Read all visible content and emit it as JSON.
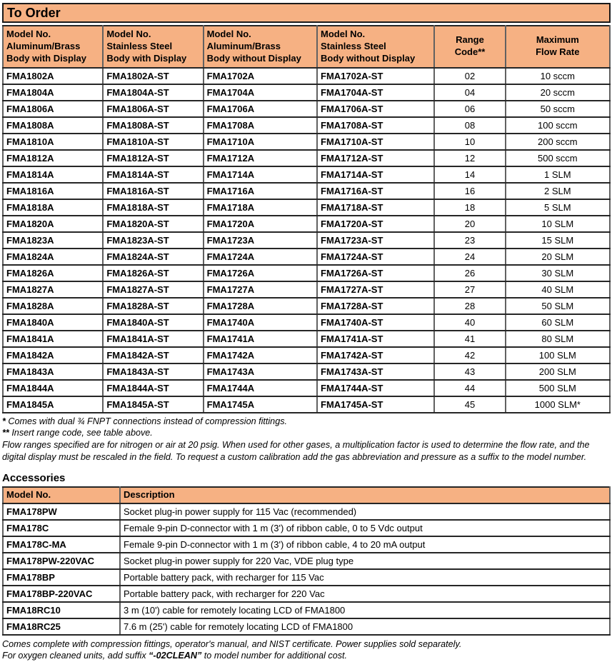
{
  "page": {
    "title": "To Order",
    "accessories_title": "Accessories"
  },
  "colors": {
    "header_orange": "#F6B183",
    "border_dark": "#1a1a1a",
    "border_gray": "#616161"
  },
  "order_table": {
    "headers": [
      "Model No.\nAluminum/Brass\nBody with Display",
      "Model No.\nStainless Steel\nBody with Display",
      "Model No.\nAluminum/Brass\nBody without Display",
      "Model No.\nStainless Steel\nBody without Display",
      "Range\nCode**",
      "Maximum\nFlow Rate"
    ],
    "rows": [
      [
        "FMA1802A",
        "FMA1802A-ST",
        "FMA1702A",
        "FMA1702A-ST",
        "02",
        "10 sccm"
      ],
      [
        "FMA1804A",
        "FMA1804A-ST",
        "FMA1704A",
        "FMA1704A-ST",
        "04",
        "20 sccm"
      ],
      [
        "FMA1806A",
        "FMA1806A-ST",
        "FMA1706A",
        "FMA1706A-ST",
        "06",
        "50 sccm"
      ],
      [
        "FMA1808A",
        "FMA1808A-ST",
        "FMA1708A",
        "FMA1708A-ST",
        "08",
        "100 sccm"
      ],
      [
        "FMA1810A",
        "FMA1810A-ST",
        "FMA1710A",
        "FMA1710A-ST",
        "10",
        "200 sccm"
      ],
      [
        "FMA1812A",
        "FMA1812A-ST",
        "FMA1712A",
        "FMA1712A-ST",
        "12",
        "500 sccm"
      ],
      [
        "FMA1814A",
        "FMA1814A-ST",
        "FMA1714A",
        "FMA1714A-ST",
        "14",
        "1 SLM"
      ],
      [
        "FMA1816A",
        "FMA1816A-ST",
        "FMA1716A",
        "FMA1716A-ST",
        "16",
        "2 SLM"
      ],
      [
        "FMA1818A",
        "FMA1818A-ST",
        "FMA1718A",
        "FMA1718A-ST",
        "18",
        "5 SLM"
      ],
      [
        "FMA1820A",
        "FMA1820A-ST",
        "FMA1720A",
        "FMA1720A-ST",
        "20",
        "10 SLM"
      ],
      [
        "FMA1823A",
        "FMA1823A-ST",
        "FMA1723A",
        "FMA1723A-ST",
        "23",
        "15 SLM"
      ],
      [
        "FMA1824A",
        "FMA1824A-ST",
        "FMA1724A",
        "FMA1724A-ST",
        "24",
        "20 SLM"
      ],
      [
        "FMA1826A",
        "FMA1826A-ST",
        "FMA1726A",
        "FMA1726A-ST",
        "26",
        "30 SLM"
      ],
      [
        "FMA1827A",
        "FMA1827A-ST",
        "FMA1727A",
        "FMA1727A-ST",
        "27",
        "40 SLM"
      ],
      [
        "FMA1828A",
        "FMA1828A-ST",
        "FMA1728A",
        "FMA1728A-ST",
        "28",
        "50 SLM"
      ],
      [
        "FMA1840A",
        "FMA1840A-ST",
        "FMA1740A",
        "FMA1740A-ST",
        "40",
        "60 SLM"
      ],
      [
        "FMA1841A",
        "FMA1841A-ST",
        "FMA1741A",
        "FMA1741A-ST",
        "41",
        "80 SLM"
      ],
      [
        "FMA1842A",
        "FMA1842A-ST",
        "FMA1742A",
        "FMA1742A-ST",
        "42",
        "100 SLM"
      ],
      [
        "FMA1843A",
        "FMA1843A-ST",
        "FMA1743A",
        "FMA1743A-ST",
        "43",
        "200 SLM"
      ],
      [
        "FMA1844A",
        "FMA1844A-ST",
        "FMA1744A",
        "FMA1744A-ST",
        "44",
        "500 SLM"
      ],
      [
        "FMA1845A",
        "FMA1845A-ST",
        "FMA1745A",
        "FMA1745A-ST",
        "45",
        "1000 SLM*"
      ]
    ]
  },
  "order_footnotes": [
    {
      "marker": "*",
      "text": "Comes with dual ¾ FNPT connections instead of compression fittings."
    },
    {
      "marker": "**",
      "text": "Insert range code, see table above."
    },
    {
      "marker": "",
      "text": "Flow ranges specified are for nitrogen or air at 20 psig. When used for other gases, a multiplication factor is used to determine the flow rate, and the digital display must be rescaled in the field. To request a custom calibration add the gas abbreviation and pressure as a suffix to the model number."
    }
  ],
  "accessories_table": {
    "headers": [
      "Model No.",
      "Description"
    ],
    "rows": [
      [
        "FMA178PW",
        "Socket plug-in power supply for 115 Vac (recommended)"
      ],
      [
        "FMA178C",
        "Female 9-pin D-connector with 1 m (3') of ribbon cable, 0 to 5 Vdc output"
      ],
      [
        "FMA178C-MA",
        "Female 9-pin D-connector with 1 m (3') of ribbon cable, 4 to 20 mA output"
      ],
      [
        "FMA178PW-220VAC",
        "Socket plug-in power supply for 220 Vac, VDE plug type"
      ],
      [
        "FMA178BP",
        "Portable battery pack, with recharger for 115 Vac"
      ],
      [
        "FMA178BP-220VAC",
        "Portable battery pack, with recharger for 220 Vac"
      ],
      [
        "FMA18RC10",
        "3 m (10') cable for remotely locating LCD of FMA1800"
      ],
      [
        "FMA18RC25",
        "7.6 m (25') cable for remotely locating LCD of FMA1800"
      ]
    ]
  },
  "accessories_footer": {
    "line1": "Comes complete with compression fittings, operator's manual, and NIST certificate. Power supplies sold separately.",
    "line2_pre": "For oxygen cleaned units, add suffix ",
    "line2_bold": "“-02CLEAN”",
    "line2_post": " to model number for additional cost."
  }
}
